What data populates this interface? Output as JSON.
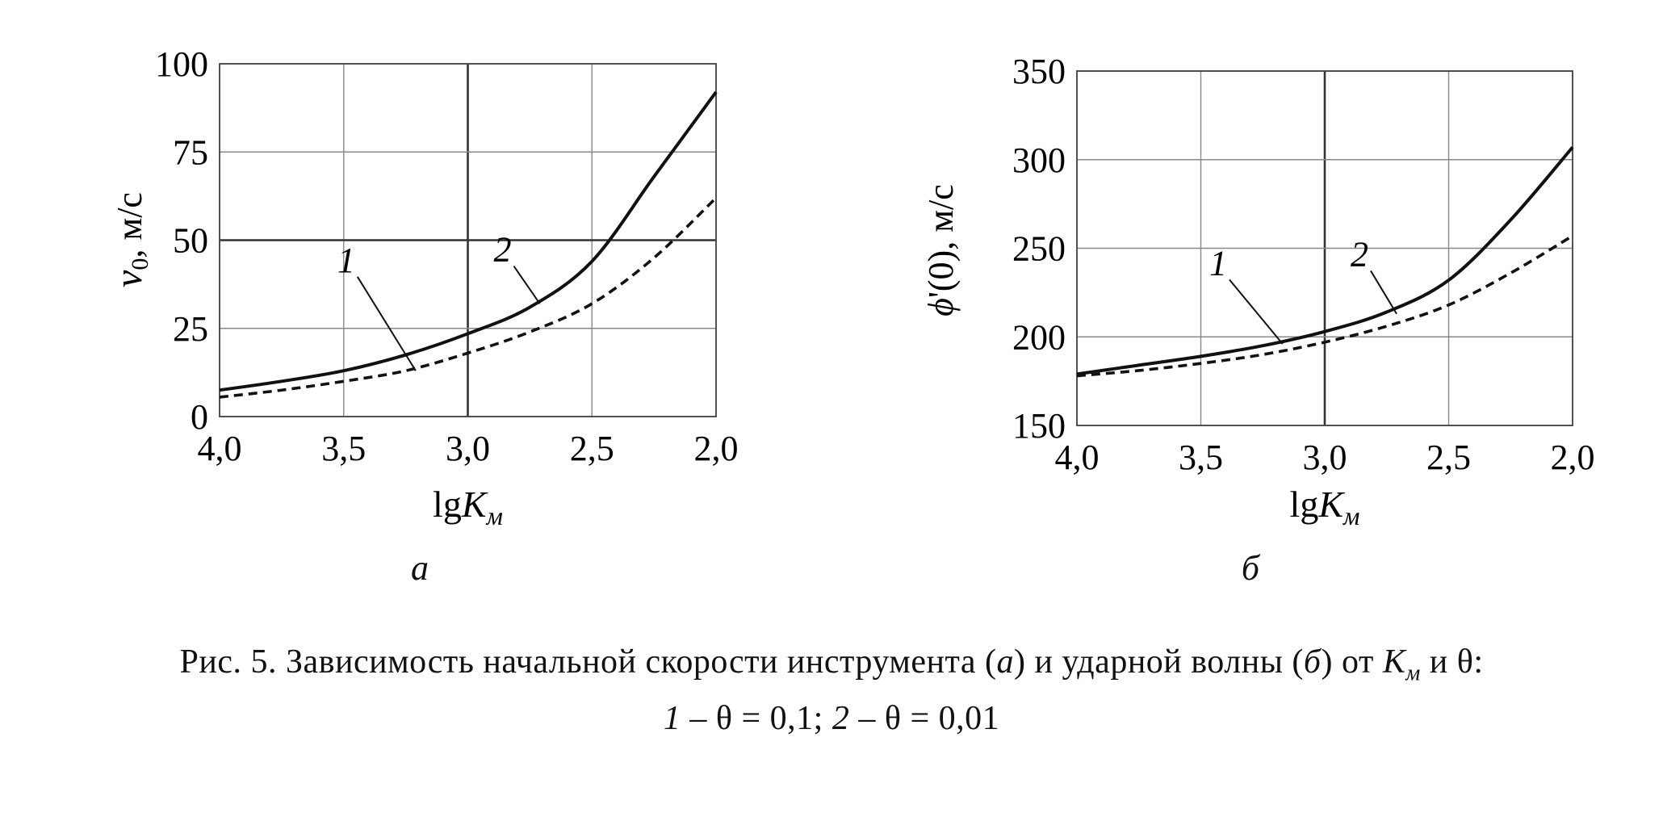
{
  "chart_data": [
    {
      "type": "line",
      "panel_label": "а",
      "xlabel_base": "lg",
      "xlabel_var": "K",
      "xlabel_sub": "м",
      "ylabel_var": "v",
      "ylabel_sub": "0",
      "ylabel_unit": ", м/с",
      "xlim": [
        4.0,
        2.0
      ],
      "ylim": [
        0,
        100
      ],
      "x_ticks": [
        4.0,
        3.5,
        3.0,
        2.5,
        2.0
      ],
      "x_tick_labels": [
        "4,0",
        "3,5",
        "3,0",
        "2,5",
        "2,0"
      ],
      "y_ticks": [
        0,
        25,
        50,
        75,
        100
      ],
      "y_tick_labels": [
        "0",
        "25",
        "50",
        "75",
        "100"
      ],
      "grid": true,
      "series": [
        {
          "name": "1",
          "style": "dashed",
          "x": [
            4.0,
            3.75,
            3.5,
            3.25,
            3.0,
            2.75,
            2.5,
            2.25,
            2.0
          ],
          "y": [
            5.5,
            7.5,
            10,
            13,
            18,
            24,
            32,
            45,
            62
          ]
        },
        {
          "name": "2",
          "style": "solid",
          "x": [
            4.0,
            3.75,
            3.5,
            3.25,
            3.0,
            2.75,
            2.5,
            2.25,
            2.0
          ],
          "y": [
            7.5,
            10,
            13,
            17.5,
            23.5,
            31,
            44,
            68,
            92
          ]
        }
      ],
      "annotations": [
        {
          "text": "1",
          "x": 3.49,
          "y": 41,
          "arrow_to": [
            3.21,
            13
          ]
        },
        {
          "text": "2",
          "x": 2.86,
          "y": 44,
          "arrow_to": [
            2.71,
            32
          ]
        }
      ]
    },
    {
      "type": "line",
      "panel_label": "б",
      "xlabel_base": "lg",
      "xlabel_var": "K",
      "xlabel_sub": "м",
      "ylabel_var": "ϕ",
      "ylabel_rest": "'(0), м/с",
      "xlim": [
        4.0,
        2.0
      ],
      "ylim": [
        150,
        350
      ],
      "x_ticks": [
        4.0,
        3.5,
        3.0,
        2.5,
        2.0
      ],
      "x_tick_labels": [
        "4,0",
        "3,5",
        "3,0",
        "2,5",
        "2,0"
      ],
      "y_ticks": [
        150,
        200,
        250,
        300,
        350
      ],
      "y_tick_labels": [
        "150",
        "200",
        "250",
        "300",
        "350"
      ],
      "grid": true,
      "series": [
        {
          "name": "1",
          "style": "dashed",
          "x": [
            4.0,
            3.75,
            3.5,
            3.25,
            3.0,
            2.75,
            2.5,
            2.25,
            2.0
          ],
          "y": [
            178,
            181,
            185,
            190,
            197,
            206,
            218,
            236,
            257
          ]
        },
        {
          "name": "2",
          "style": "solid",
          "x": [
            4.0,
            3.75,
            3.5,
            3.25,
            3.0,
            2.75,
            2.5,
            2.25,
            2.0
          ],
          "y": [
            179,
            184,
            189,
            195,
            203,
            214,
            232,
            266,
            307
          ]
        }
      ],
      "annotations": [
        {
          "text": "1",
          "x": 3.43,
          "y": 235,
          "arrow_to": [
            3.17,
            196
          ]
        },
        {
          "text": "2",
          "x": 2.86,
          "y": 240,
          "arrow_to": [
            2.71,
            213
          ]
        }
      ]
    }
  ],
  "caption": {
    "line1_a": "Рис. 5. Зависимость начальной скорости инструмента (",
    "line1_b": "а",
    "line1_c": ") и ударной волны (",
    "line1_d": "б",
    "line1_e": ") от ",
    "line1_k": "K",
    "line1_ksub": "м",
    "line1_f": " и θ:",
    "line2_n1": "1",
    "line2_t1": " – θ = 0,1; ",
    "line2_n2": "2",
    "line2_t2": " – θ = 0,01"
  }
}
